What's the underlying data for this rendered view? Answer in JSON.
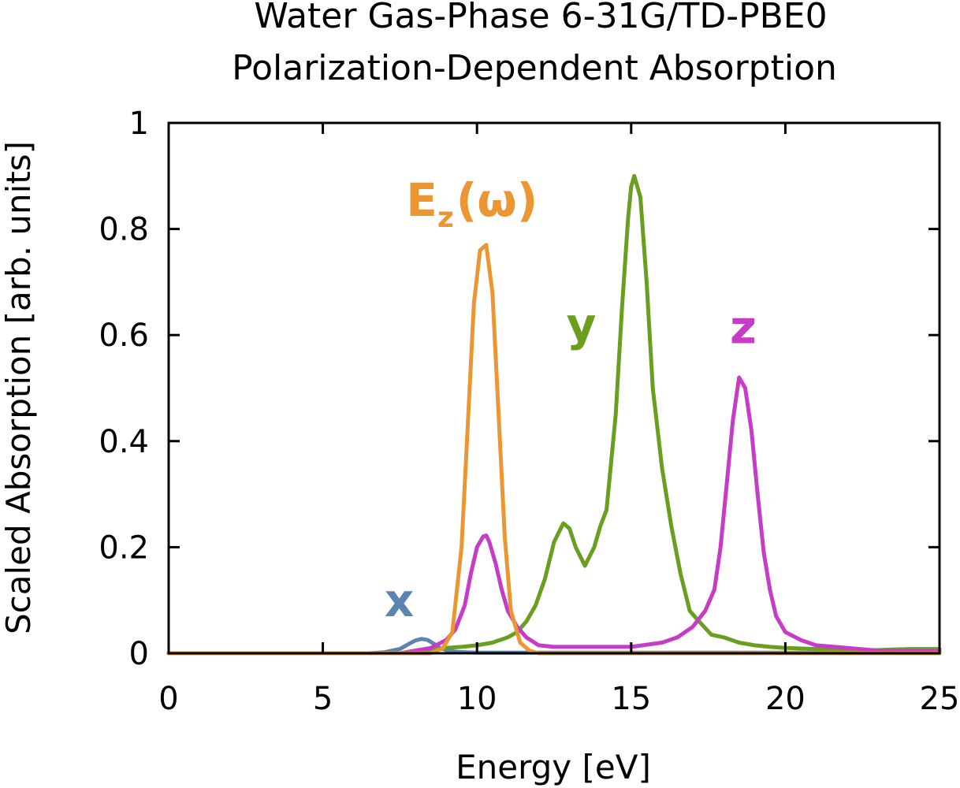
{
  "chart_data": {
    "type": "line",
    "title_lines": [
      "Water Gas-Phase 6-31G/TD-PBE0",
      "Polarization-Dependent Absorption"
    ],
    "xlabel": "Energy [eV]",
    "ylabel": "Scaled Absorption [arb. units]",
    "xlim": [
      0,
      25
    ],
    "ylim": [
      0,
      1
    ],
    "xticks": [
      0,
      5,
      10,
      15,
      20,
      25
    ],
    "xtick_labels": [
      "0",
      "5",
      "10",
      "15",
      "20",
      "25"
    ],
    "yticks": [
      0,
      0.2,
      0.4,
      0.6,
      0.8,
      1
    ],
    "ytick_labels": [
      "0",
      "0.2",
      "0.4",
      "0.6",
      "0.8",
      "1"
    ],
    "grid": false,
    "legend": "none",
    "series": [
      {
        "name": "x",
        "color": "#5b84b1",
        "x": [
          0,
          6.5,
          7.0,
          7.5,
          7.8,
          8.0,
          8.2,
          8.4,
          8.6,
          8.8,
          9.0,
          9.3,
          9.6,
          10.0,
          11.0,
          25
        ],
        "values": [
          0,
          0,
          0.002,
          0.008,
          0.018,
          0.024,
          0.027,
          0.025,
          0.018,
          0.01,
          0.006,
          0.003,
          0.002,
          0.001,
          0.001,
          0.001
        ]
      },
      {
        "name": "y",
        "color": "#6a9e1f",
        "x": [
          0,
          8.0,
          8.5,
          9.0,
          9.5,
          10.0,
          10.5,
          11.0,
          11.3,
          11.6,
          11.9,
          12.2,
          12.5,
          12.8,
          13.0,
          13.2,
          13.5,
          13.8,
          14.0,
          14.2,
          14.5,
          14.7,
          14.9,
          15.0,
          15.1,
          15.3,
          15.5,
          15.7,
          16.0,
          16.3,
          16.6,
          16.9,
          17.2,
          17.6,
          18.0,
          18.5,
          19.0,
          19.5,
          20.0,
          21.0,
          22.0,
          23.0,
          24.0,
          25.0
        ],
        "values": [
          0,
          0,
          0.005,
          0.01,
          0.012,
          0.015,
          0.02,
          0.03,
          0.04,
          0.06,
          0.09,
          0.14,
          0.21,
          0.245,
          0.235,
          0.2,
          0.165,
          0.2,
          0.24,
          0.27,
          0.45,
          0.65,
          0.82,
          0.88,
          0.9,
          0.86,
          0.7,
          0.5,
          0.35,
          0.24,
          0.15,
          0.08,
          0.06,
          0.035,
          0.03,
          0.02,
          0.015,
          0.012,
          0.01,
          0.008,
          0.006,
          0.006,
          0.008,
          0.008
        ]
      },
      {
        "name": "z",
        "color": "#c73cc7",
        "x": [
          0,
          7.5,
          8.0,
          8.5,
          9.0,
          9.3,
          9.6,
          9.8,
          10.0,
          10.2,
          10.3,
          10.4,
          10.6,
          10.8,
          11.0,
          11.3,
          11.6,
          12.0,
          12.5,
          13.0,
          14.0,
          15.0,
          16.0,
          16.5,
          17.0,
          17.4,
          17.7,
          17.9,
          18.1,
          18.3,
          18.5,
          18.7,
          18.9,
          19.1,
          19.3,
          19.5,
          19.7,
          20.0,
          20.5,
          21.0,
          22.0,
          23.0,
          24.0,
          25.0
        ],
        "values": [
          0,
          0,
          0.005,
          0.01,
          0.025,
          0.045,
          0.09,
          0.15,
          0.2,
          0.22,
          0.222,
          0.21,
          0.17,
          0.12,
          0.08,
          0.05,
          0.03,
          0.015,
          0.012,
          0.012,
          0.012,
          0.012,
          0.02,
          0.03,
          0.05,
          0.08,
          0.12,
          0.2,
          0.32,
          0.44,
          0.52,
          0.5,
          0.42,
          0.3,
          0.19,
          0.12,
          0.07,
          0.04,
          0.025,
          0.015,
          0.01,
          0.005,
          0.004,
          0.004
        ]
      },
      {
        "name": "E_z(ω)",
        "color": "#ec9633",
        "x": [
          0,
          8.5,
          8.9,
          9.2,
          9.5,
          9.7,
          9.9,
          10.1,
          10.3,
          10.5,
          10.7,
          10.9,
          11.1,
          11.4,
          11.7,
          12.0,
          25
        ],
        "values": [
          0,
          0,
          0.01,
          0.04,
          0.2,
          0.43,
          0.66,
          0.76,
          0.77,
          0.68,
          0.45,
          0.22,
          0.08,
          0.02,
          0.005,
          0,
          0
        ]
      }
    ],
    "annotations": [
      {
        "label_main": "x",
        "label_sub": "",
        "color": "#5b84b1",
        "x": 7.0,
        "y": 0.07
      },
      {
        "label_main": "y",
        "label_sub": "",
        "color": "#6a9e1f",
        "x": 12.9,
        "y": 0.59
      },
      {
        "label_main": "z",
        "label_sub": "",
        "color": "#c73cc7",
        "x": 18.2,
        "y": 0.585
      },
      {
        "label_main": "E",
        "label_sub": "z",
        "label_suffix": "(ω)",
        "color": "#ec9633",
        "x": 7.7,
        "y": 0.825
      }
    ]
  }
}
